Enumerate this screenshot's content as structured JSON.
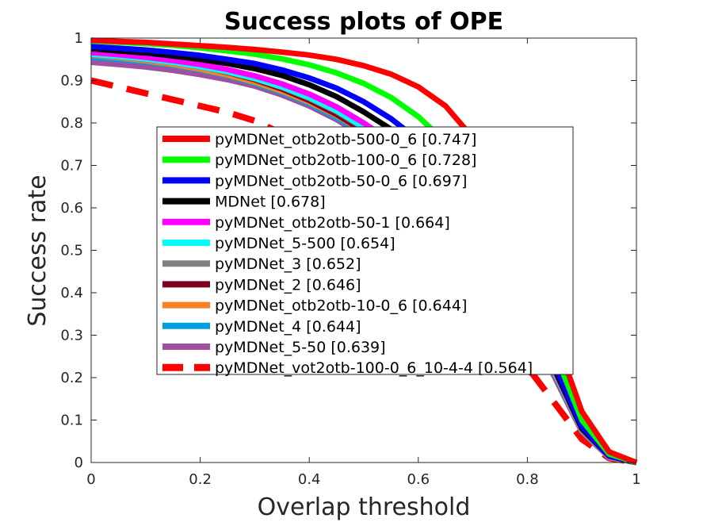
{
  "chart_data": {
    "type": "line",
    "title": "Success plots of OPE",
    "xlabel": "Overlap threshold",
    "ylabel": "Success rate",
    "xlim": [
      0,
      1
    ],
    "ylim": [
      0,
      1
    ],
    "x_ticks": [
      "0",
      "0.2",
      "0.4",
      "0.6",
      "0.8",
      "1"
    ],
    "y_ticks": [
      "0",
      "0.1",
      "0.2",
      "0.3",
      "0.4",
      "0.5",
      "0.6",
      "0.7",
      "0.8",
      "0.9",
      "1"
    ],
    "grid": false,
    "legend_position": "center",
    "x": [
      0,
      0.05,
      0.1,
      0.15,
      0.2,
      0.25,
      0.3,
      0.35,
      0.4,
      0.45,
      0.5,
      0.55,
      0.6,
      0.65,
      0.7,
      0.75,
      0.8,
      0.85,
      0.9,
      0.95,
      1
    ],
    "series": [
      {
        "name": "pyMDNet_otb2otb-500-0_6 [0.747]",
        "color": "#ff0000",
        "dashed": false,
        "values": [
          0.995,
          0.992,
          0.99,
          0.986,
          0.982,
          0.978,
          0.973,
          0.967,
          0.96,
          0.95,
          0.935,
          0.915,
          0.885,
          0.84,
          0.765,
          0.65,
          0.48,
          0.3,
          0.12,
          0.025,
          0
        ]
      },
      {
        "name": "pyMDNet_otb2otb-100-0_6 [0.728]",
        "color": "#00ff00",
        "dashed": false,
        "values": [
          0.993,
          0.99,
          0.987,
          0.983,
          0.977,
          0.97,
          0.962,
          0.951,
          0.937,
          0.918,
          0.893,
          0.86,
          0.815,
          0.755,
          0.675,
          0.565,
          0.41,
          0.26,
          0.1,
          0.02,
          0
        ]
      },
      {
        "name": "pyMDNet_otb2otb-50-0_6 [0.697]",
        "color": "#0000ff",
        "dashed": false,
        "values": [
          0.98,
          0.976,
          0.972,
          0.966,
          0.959,
          0.95,
          0.94,
          0.925,
          0.906,
          0.882,
          0.85,
          0.81,
          0.76,
          0.7,
          0.62,
          0.51,
          0.37,
          0.23,
          0.085,
          0.015,
          0
        ]
      },
      {
        "name": "MDNet [0.678]",
        "color": "#000000",
        "dashed": false,
        "values": [
          0.975,
          0.97,
          0.965,
          0.958,
          0.95,
          0.94,
          0.928,
          0.912,
          0.89,
          0.862,
          0.826,
          0.785,
          0.735,
          0.675,
          0.595,
          0.49,
          0.355,
          0.22,
          0.08,
          0.015,
          0
        ]
      },
      {
        "name": "pyMDNet_otb2otb-50-1 [0.664]",
        "color": "#ff00ff",
        "dashed": false,
        "values": [
          0.966,
          0.961,
          0.955,
          0.947,
          0.938,
          0.926,
          0.911,
          0.892,
          0.868,
          0.838,
          0.8,
          0.757,
          0.708,
          0.65,
          0.575,
          0.475,
          0.345,
          0.215,
          0.078,
          0.014,
          0
        ]
      },
      {
        "name": "pyMDNet_5-500 [0.654]",
        "color": "#00ffff",
        "dashed": false,
        "values": [
          0.962,
          0.957,
          0.951,
          0.943,
          0.933,
          0.921,
          0.905,
          0.885,
          0.86,
          0.829,
          0.79,
          0.747,
          0.698,
          0.64,
          0.565,
          0.467,
          0.338,
          0.21,
          0.076,
          0.013,
          0
        ]
      },
      {
        "name": "pyMDNet_3 [0.652]",
        "color": "#808080",
        "dashed": false,
        "values": [
          0.961,
          0.956,
          0.95,
          0.942,
          0.932,
          0.92,
          0.904,
          0.884,
          0.858,
          0.827,
          0.788,
          0.745,
          0.696,
          0.638,
          0.563,
          0.465,
          0.336,
          0.209,
          0.075,
          0.013,
          0
        ]
      },
      {
        "name": "pyMDNet_2 [0.646]",
        "color": "#800020",
        "dashed": false,
        "values": [
          0.97,
          0.963,
          0.955,
          0.945,
          0.933,
          0.919,
          0.902,
          0.88,
          0.853,
          0.82,
          0.781,
          0.737,
          0.688,
          0.63,
          0.556,
          0.46,
          0.333,
          0.207,
          0.074,
          0.013,
          0
        ]
      },
      {
        "name": "pyMDNet_otb2otb-10-0_6 [0.644]",
        "color": "#ff8020",
        "dashed": false,
        "values": [
          0.96,
          0.954,
          0.947,
          0.938,
          0.927,
          0.913,
          0.896,
          0.875,
          0.849,
          0.818,
          0.779,
          0.735,
          0.685,
          0.627,
          0.553,
          0.456,
          0.33,
          0.205,
          0.073,
          0.012,
          0
        ]
      },
      {
        "name": "pyMDNet_4 [0.644]",
        "color": "#00a0e0",
        "dashed": false,
        "values": [
          0.955,
          0.95,
          0.944,
          0.936,
          0.925,
          0.911,
          0.893,
          0.872,
          0.845,
          0.813,
          0.774,
          0.73,
          0.681,
          0.623,
          0.55,
          0.454,
          0.329,
          0.204,
          0.073,
          0.012,
          0
        ]
      },
      {
        "name": "pyMDNet_5-50 [0.639]",
        "color": "#a050a0",
        "dashed": false,
        "values": [
          0.943,
          0.938,
          0.932,
          0.924,
          0.914,
          0.902,
          0.887,
          0.866,
          0.84,
          0.808,
          0.769,
          0.725,
          0.676,
          0.618,
          0.545,
          0.45,
          0.325,
          0.201,
          0.072,
          0.012,
          0
        ]
      },
      {
        "name": "pyMDNet_vot2otb-100-0_6_10-4-4 [0.564]",
        "color": "#ff0000",
        "dashed": true,
        "values": [
          0.9,
          0.885,
          0.87,
          0.855,
          0.84,
          0.825,
          0.805,
          0.775,
          0.735,
          0.69,
          0.64,
          0.585,
          0.525,
          0.46,
          0.39,
          0.31,
          0.225,
          0.14,
          0.055,
          0.01,
          0
        ]
      }
    ]
  }
}
